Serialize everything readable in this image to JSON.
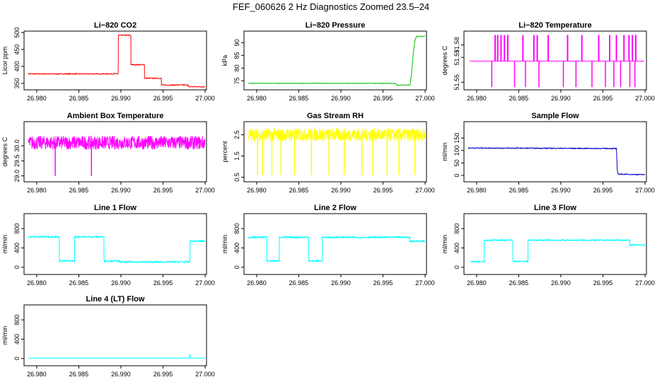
{
  "figure": {
    "title": "FEF_060626  2 Hz Diagnostics Zoomed 23.5–24"
  },
  "colors": {
    "red": "#ff0000",
    "green": "#00c000",
    "magenta": "#ff00ff",
    "yellow": "#ffff00",
    "blue": "#0000cc",
    "cyan": "#00ffff"
  },
  "chart_data": [
    {
      "id": "co2",
      "type": "line",
      "title": "Li−820 CO2",
      "ylabel": "Licor ppm",
      "color": "#ff0000",
      "xlim": [
        26.979,
        27.0
      ],
      "ylim": [
        335,
        500
      ],
      "xticks": [
        "26.980",
        "26.985",
        "26.990",
        "26.995",
        "27.000"
      ],
      "xtick_values": [
        26.98,
        26.985,
        26.99,
        26.995,
        27.0
      ],
      "yticks": [
        "350",
        "400",
        "450",
        "500"
      ],
      "ytick_values": [
        350,
        400,
        450,
        500
      ],
      "series": [
        {
          "name": "CO2",
          "style": "step",
          "noise": 1.5,
          "x": [
            26.979,
            26.9897,
            26.9912,
            26.9928,
            26.9948,
            26.998,
            27.0
          ],
          "y": [
            378,
            492,
            405,
            365,
            345,
            340,
            340
          ]
        }
      ]
    },
    {
      "id": "pressure",
      "type": "line",
      "title": "Li−820 Pressure",
      "ylabel": "kPa",
      "color": "#00c000",
      "xlim": [
        26.979,
        27.0
      ],
      "ylim": [
        72,
        94
      ],
      "xticks": [
        "26.980",
        "26.985",
        "26.990",
        "26.995",
        "27.000"
      ],
      "xtick_values": [
        26.98,
        26.985,
        26.99,
        26.995,
        27.0
      ],
      "yticks": [
        "75",
        "80",
        "85",
        "90"
      ],
      "ytick_values": [
        75,
        80,
        85,
        90
      ],
      "series": [
        {
          "name": "Pressure",
          "style": "line",
          "noise": 0.1,
          "x": [
            26.979,
            26.9965,
            26.9966,
            26.9982,
            26.9984,
            26.9986,
            26.9988,
            26.999,
            27.0
          ],
          "y": [
            74,
            74,
            73.3,
            73.3,
            78,
            86,
            91,
            92.5,
            92.5
          ]
        }
      ]
    },
    {
      "id": "licor_temp",
      "type": "line",
      "title": "Li−820 Temperature",
      "ylabel": "degrees C",
      "color": "#ff00ff",
      "xlim": [
        26.979,
        27.0
      ],
      "ylim": [
        51.545,
        51.59
      ],
      "xticks": [
        "26.980",
        "26.985",
        "26.990",
        "26.995",
        "27.000"
      ],
      "xtick_values": [
        26.98,
        26.985,
        26.99,
        26.995,
        27.0
      ],
      "yticks": [
        "51.55",
        "51.57",
        "51.58"
      ],
      "ytick_values": [
        51.55,
        51.57,
        51.58
      ],
      "series": [
        {
          "name": "Temperature",
          "style": "spikes",
          "base": 51.567,
          "spikes_up": [
            26.9822,
            26.9825,
            26.9829,
            26.9833,
            26.9837,
            26.9855,
            26.9868,
            26.9872,
            26.9885,
            26.9908,
            26.9925,
            26.9945,
            26.9958,
            26.9966,
            26.9975,
            26.9981,
            26.9985,
            26.9989
          ],
          "spikes_down": [
            26.9818,
            26.9845,
            26.9858,
            26.9874,
            26.9903,
            26.9918,
            26.9937,
            26.9953,
            26.9963,
            26.9971,
            26.9982,
            26.9988
          ],
          "up_to": 51.588,
          "down_to": 51.546
        }
      ]
    },
    {
      "id": "ambient",
      "type": "line",
      "title": "Ambient Box Temperature",
      "ylabel": "degrees C",
      "color": "#ff00ff",
      "xlim": [
        26.979,
        27.0
      ],
      "ylim": [
        28.85,
        30.75
      ],
      "xticks": [
        "26.980",
        "26.985",
        "26.990",
        "26.995",
        "27.000"
      ],
      "xtick_values": [
        26.98,
        26.985,
        26.99,
        26.995,
        27.0
      ],
      "yticks": [
        "29.0",
        "29.5",
        "30.0"
      ],
      "ytick_values": [
        29.0,
        29.5,
        30.0
      ],
      "series": [
        {
          "name": "Ambient",
          "style": "band",
          "noise": 0.22,
          "x": [
            26.979,
            27.0
          ],
          "y": [
            30.1,
            30.1
          ],
          "spikes_down": [
            26.9822,
            26.9865
          ],
          "spike_to": 29.0
        }
      ]
    },
    {
      "id": "rh",
      "type": "line",
      "title": "Gas Stream RH",
      "ylabel": "percent",
      "color": "#ffff00",
      "xlim": [
        26.979,
        27.0
      ],
      "ylim": [
        0.35,
        3.05
      ],
      "xticks": [
        "26.980",
        "26.985",
        "26.990",
        "26.995",
        "27.000"
      ],
      "xtick_values": [
        26.98,
        26.985,
        26.99,
        26.995,
        27.0
      ],
      "yticks": [
        "0.5",
        "1.5",
        "2.5"
      ],
      "ytick_values": [
        0.5,
        1.5,
        2.5
      ],
      "series": [
        {
          "name": "RH",
          "style": "band",
          "noise": 0.3,
          "x": [
            26.979,
            27.0
          ],
          "y": [
            2.5,
            2.5
          ],
          "spikes_down": [
            26.9801,
            26.9807,
            26.9818,
            26.9829,
            26.9845,
            26.9865,
            26.9886,
            26.9904,
            26.9925,
            26.9938,
            26.9955,
            26.9969,
            26.9988
          ],
          "spike_to": 0.6
        }
      ]
    },
    {
      "id": "sample_flow",
      "type": "line",
      "title": "Sample Flow",
      "ylabel": "ml/min",
      "color": "#0000cc",
      "xlim": [
        26.979,
        27.0
      ],
      "ylim": [
        -20,
        210
      ],
      "xticks": [
        "26.980",
        "26.985",
        "26.990",
        "26.995",
        "27.000"
      ],
      "xtick_values": [
        26.98,
        26.985,
        26.99,
        26.995,
        27.0
      ],
      "yticks": [
        "0",
        "50",
        "100",
        "150"
      ],
      "ytick_values": [
        0,
        50,
        100,
        150
      ],
      "series": [
        {
          "name": "Sample Flow",
          "style": "line",
          "noise": 2,
          "x": [
            26.979,
            26.9966,
            26.9967,
            26.9968,
            27.0
          ],
          "y": [
            110,
            108,
            20,
            5,
            3
          ]
        }
      ]
    },
    {
      "id": "line1",
      "type": "line",
      "title": "Line 1 Flow",
      "ylabel": "ml/min",
      "color": "#00ffff",
      "xlim": [
        26.979,
        27.0
      ],
      "ylim": [
        -120,
        1080
      ],
      "xticks": [
        "26.980",
        "26.985",
        "26.990",
        "26.995",
        "27.000"
      ],
      "xtick_values": [
        26.98,
        26.985,
        26.99,
        26.995,
        27.0
      ],
      "yticks": [
        "0",
        "400",
        "800"
      ],
      "ytick_values": [
        0,
        400,
        800
      ],
      "series": [
        {
          "name": "Line 1",
          "style": "step",
          "noise": 18,
          "x": [
            26.979,
            26.9827,
            26.9845,
            26.988,
            26.9898,
            26.9982,
            27.0
          ],
          "y": [
            630,
            130,
            630,
            130,
            110,
            540,
            540
          ]
        }
      ]
    },
    {
      "id": "line2",
      "type": "line",
      "title": "Line 2 Flow",
      "ylabel": "ml/min",
      "color": "#00ffff",
      "xlim": [
        26.979,
        27.0
      ],
      "ylim": [
        -120,
        1080
      ],
      "xticks": [
        "26.980",
        "26.985",
        "26.990",
        "26.995",
        "27.000"
      ],
      "xtick_values": [
        26.98,
        26.985,
        26.99,
        26.995,
        27.0
      ],
      "yticks": [
        "0",
        "400",
        "800"
      ],
      "ytick_values": [
        0,
        400,
        800
      ],
      "series": [
        {
          "name": "Line 2",
          "style": "step",
          "noise": 18,
          "x": [
            26.979,
            26.9812,
            26.9827,
            26.9862,
            26.9878,
            26.9982,
            27.0
          ],
          "y": [
            620,
            130,
            620,
            130,
            620,
            540,
            540
          ]
        }
      ]
    },
    {
      "id": "line3",
      "type": "line",
      "title": "Line 3 Flow",
      "ylabel": "ml/min",
      "color": "#00ffff",
      "xlim": [
        26.979,
        27.0
      ],
      "ylim": [
        -120,
        1080
      ],
      "xticks": [
        "26.980",
        "26.985",
        "26.990",
        "26.995",
        "27.000"
      ],
      "xtick_values": [
        26.98,
        26.985,
        26.99,
        26.995,
        27.0
      ],
      "yticks": [
        "0",
        "400",
        "800"
      ],
      "ytick_values": [
        0,
        400,
        800
      ],
      "series": [
        {
          "name": "Line 3",
          "style": "step",
          "noise": 15,
          "x": [
            26.9793,
            26.9809,
            26.9843,
            26.9861,
            26.9982,
            27.0
          ],
          "y": [
            120,
            560,
            120,
            560,
            460,
            460
          ]
        }
      ]
    },
    {
      "id": "line4",
      "type": "line",
      "title": "Line 4 (LT) Flow",
      "ylabel": "ml/min",
      "color": "#00ffff",
      "xlim": [
        26.979,
        27.0
      ],
      "ylim": [
        -120,
        1080
      ],
      "xticks": [
        "26.980",
        "26.985",
        "26.990",
        "26.995",
        "27.000"
      ],
      "xtick_values": [
        26.98,
        26.985,
        26.99,
        26.995,
        27.0
      ],
      "yticks": [
        "0",
        "400",
        "800"
      ],
      "ytick_values": [
        0,
        400,
        800
      ],
      "series": [
        {
          "name": "Line 4",
          "style": "line",
          "noise": 3,
          "x": [
            26.979,
            26.9981,
            26.9982,
            26.9983,
            27.0
          ],
          "y": [
            10,
            10,
            90,
            10,
            10
          ]
        }
      ]
    }
  ]
}
